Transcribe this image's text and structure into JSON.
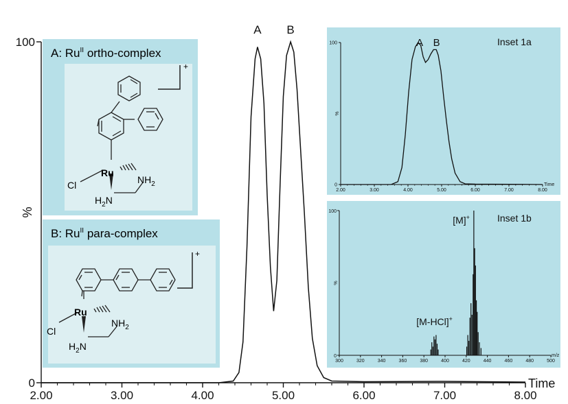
{
  "chart_data": [
    {
      "type": "line",
      "id": "main",
      "title": "",
      "xlabel": "Time",
      "ylabel": "%",
      "xlim": [
        2.0,
        8.0
      ],
      "ylim": [
        0,
        100
      ],
      "xticks": [
        "2.00",
        "3.00",
        "4.00",
        "5.00",
        "6.00",
        "7.00",
        "8.00"
      ],
      "yticks": [
        "0",
        "100"
      ],
      "peaks": [
        {
          "label": "A",
          "x": 4.68
        },
        {
          "label": "B",
          "x": 5.09
        }
      ],
      "series": [
        {
          "x": [
            2.0,
            4.2,
            4.38,
            4.45,
            4.5,
            4.55,
            4.6,
            4.65,
            4.68,
            4.72,
            4.76,
            4.8,
            4.84,
            4.88,
            4.92,
            4.96,
            5.0,
            5.04,
            5.09,
            5.13,
            5.17,
            5.21,
            5.26,
            5.31,
            5.36,
            5.42,
            5.5,
            5.6,
            6.0,
            7.0,
            8.0
          ],
          "y": [
            0,
            0,
            0.5,
            3,
            12,
            40,
            78,
            95,
            98.5,
            95,
            82,
            55,
            34,
            21,
            30,
            58,
            84,
            96,
            100,
            97,
            86,
            70,
            50,
            28,
            13,
            5,
            1.5,
            0.5,
            0.3,
            0.4,
            0.2
          ]
        }
      ]
    },
    {
      "type": "line",
      "id": "inset-1a",
      "title": "Inset 1a",
      "xlabel": "Time",
      "ylabel": "%",
      "xlim": [
        2.0,
        8.0
      ],
      "ylim": [
        0,
        100
      ],
      "xticks": [
        "2.00",
        "3.00",
        "4.00",
        "5.00",
        "6.00",
        "7.00",
        "8.00"
      ],
      "yticks": [
        "0",
        "100"
      ],
      "peaks": [
        {
          "label": "A",
          "x": 4.35
        },
        {
          "label": "B",
          "x": 4.85
        }
      ],
      "series": [
        {
          "x": [
            2.0,
            3.5,
            3.7,
            3.82,
            3.92,
            4.02,
            4.12,
            4.22,
            4.3,
            4.38,
            4.45,
            4.52,
            4.6,
            4.68,
            4.76,
            4.84,
            4.9,
            4.98,
            5.06,
            5.14,
            5.22,
            5.3,
            5.4,
            5.55,
            5.7,
            6.0,
            7.0,
            8.0
          ],
          "y": [
            0,
            0,
            2,
            12,
            35,
            65,
            88,
            97,
            100,
            98,
            90,
            86,
            88,
            92,
            95,
            95,
            91,
            80,
            62,
            45,
            30,
            18,
            8,
            2,
            0.5,
            0.3,
            0.2,
            0
          ]
        }
      ]
    },
    {
      "type": "bar",
      "id": "inset-1b",
      "title": "Inset 1b",
      "xlabel": "m/z",
      "ylabel": "%",
      "xlim": [
        300,
        500
      ],
      "ylim": [
        0,
        100
      ],
      "xticks": [
        "300",
        "320",
        "340",
        "360",
        "380",
        "400",
        "420",
        "440",
        "460",
        "480",
        "500"
      ],
      "yticks": [
        "0",
        "100"
      ],
      "annotations": [
        {
          "label": "[M-HCl]",
          "sup": "+",
          "x": 390
        },
        {
          "label": "[M]",
          "sup": "+",
          "x": 427
        }
      ],
      "peaks": [
        {
          "mz": 386.5,
          "int": 4
        },
        {
          "mz": 387.5,
          "int": 9
        },
        {
          "mz": 388.5,
          "int": 6
        },
        {
          "mz": 389.5,
          "int": 13
        },
        {
          "mz": 390.5,
          "int": 11
        },
        {
          "mz": 391.5,
          "int": 14
        },
        {
          "mz": 392.5,
          "int": 8
        },
        {
          "mz": 393.5,
          "int": 4
        },
        {
          "mz": 420.5,
          "int": 6
        },
        {
          "mz": 421.5,
          "int": 14
        },
        {
          "mz": 422.5,
          "int": 10
        },
        {
          "mz": 423.5,
          "int": 26
        },
        {
          "mz": 424.5,
          "int": 36
        },
        {
          "mz": 425.5,
          "int": 28
        },
        {
          "mz": 426.5,
          "int": 56
        },
        {
          "mz": 427.2,
          "int": 100
        },
        {
          "mz": 428.0,
          "int": 74
        },
        {
          "mz": 428.8,
          "int": 62
        },
        {
          "mz": 429.6,
          "int": 38
        },
        {
          "mz": 430.4,
          "int": 30
        },
        {
          "mz": 431.3,
          "int": 16
        },
        {
          "mz": 432.5,
          "int": 9
        },
        {
          "mz": 434.0,
          "int": 5
        }
      ]
    }
  ],
  "structures": {
    "a": {
      "prefix": "A:  Ru",
      "sup": "II",
      "suffix": " ortho-complex",
      "charge": "+",
      "metal": "Ru",
      "halide": "Cl",
      "nh2": "NH",
      "nh2_sub": "2",
      "h2n": "H",
      "h2n_sub": "2",
      "h2n_n": "N"
    },
    "b": {
      "prefix": "B:  Ru",
      "sup": "II",
      "suffix": " para-complex",
      "charge": "+",
      "metal": "Ru",
      "halide": "Cl",
      "nh2": "NH",
      "nh2_sub": "2",
      "h2n": "H",
      "h2n_sub": "2",
      "h2n_n": "N"
    }
  },
  "colors": {
    "panel_bg": "#b7e0e8",
    "line": "#111111"
  }
}
